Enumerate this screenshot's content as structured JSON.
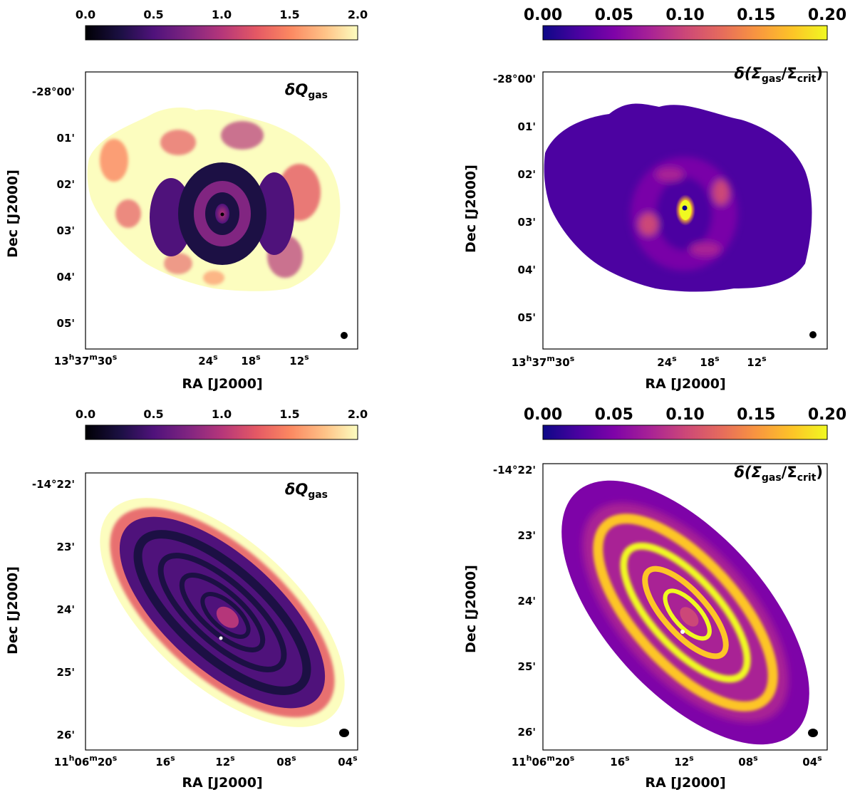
{
  "chart_data": [
    {
      "type": "heatmap",
      "panel": "top-left",
      "title_main": "δQ",
      "title_sub": "gas",
      "colormap": "magma",
      "colorbar": {
        "range": [
          0.0,
          2.0
        ],
        "ticks": [
          "0.0",
          "0.5",
          "1.0",
          "1.5",
          "2.0"
        ],
        "tick_values": [
          0.0,
          0.5,
          1.0,
          1.5,
          2.0
        ],
        "font": "small"
      },
      "xlabel": "RA [J2000]",
      "ylabel": "Dec [J2000]",
      "xticks": [
        {
          "base": "13",
          "sup1": "h",
          "mid": "37",
          "sup2": "m",
          "sec": "30",
          "sup3": "s"
        },
        {
          "sec": "24",
          "sup3": "s"
        },
        {
          "sec": "18",
          "sup3": "s"
        },
        {
          "sec": "12",
          "sup3": "s"
        }
      ],
      "yticks": [
        "-28°00'",
        "01'",
        "02'",
        "03'",
        "04'",
        "05'"
      ],
      "galaxy": "face-on barred spiral with ring",
      "beam": "small circular"
    },
    {
      "type": "heatmap",
      "panel": "top-right",
      "title_main": "δ(Σ",
      "title_sub1": "gas",
      "title_mid": "/Σ",
      "title_sub2": "crit",
      "title_end": ")",
      "colormap": "plasma",
      "colorbar": {
        "range": [
          0.0,
          0.2
        ],
        "ticks": [
          "0.00",
          "0.05",
          "0.10",
          "0.15",
          "0.20"
        ],
        "tick_values": [
          0.0,
          0.05,
          0.1,
          0.15,
          0.2
        ],
        "font": "large"
      },
      "xlabel": "RA [J2000]",
      "ylabel": "Dec [J2000]",
      "xticks": [
        {
          "base": "13",
          "sup1": "h",
          "mid": "37",
          "sup2": "m",
          "sec": "30",
          "sup3": "s"
        },
        {
          "sec": "24",
          "sup3": "s"
        },
        {
          "sec": "18",
          "sup3": "s"
        },
        {
          "sec": "12",
          "sup3": "s"
        }
      ],
      "yticks": [
        "-28°00'",
        "01'",
        "02'",
        "03'",
        "04'",
        "05'"
      ],
      "galaxy": "face-on barred spiral with ring",
      "beam": "small circular"
    },
    {
      "type": "heatmap",
      "panel": "bottom-left",
      "title_main": "δQ",
      "title_sub": "gas",
      "colormap": "magma",
      "colorbar": {
        "range": [
          0.0,
          2.0
        ],
        "ticks": [
          "0.0",
          "0.5",
          "1.0",
          "1.5",
          "2.0"
        ],
        "tick_values": [
          0.0,
          0.5,
          1.0,
          1.5,
          2.0
        ],
        "font": "small"
      },
      "xlabel": "RA [J2000]",
      "ylabel": "Dec [J2000]",
      "xticks": [
        {
          "base": "11",
          "sup1": "h",
          "mid": "06",
          "sup2": "m",
          "sec": "20",
          "sup3": "s"
        },
        {
          "sec": "16",
          "sup3": "s"
        },
        {
          "sec": "12",
          "sup3": "s"
        },
        {
          "sec": "08",
          "sup3": "s"
        },
        {
          "sec": "04",
          "sup3": "s"
        }
      ],
      "yticks": [
        "-14°22'",
        "23'",
        "24'",
        "25'",
        "26'"
      ],
      "galaxy": "inclined spiral with multiple rings",
      "beam": "larger elliptical"
    },
    {
      "type": "heatmap",
      "panel": "bottom-right",
      "title_main": "δ(Σ",
      "title_sub1": "gas",
      "title_mid": "/Σ",
      "title_sub2": "crit",
      "title_end": ")",
      "colormap": "plasma",
      "colorbar": {
        "range": [
          0.0,
          0.2
        ],
        "ticks": [
          "0.00",
          "0.05",
          "0.10",
          "0.15",
          "0.20"
        ],
        "tick_values": [
          0.0,
          0.05,
          0.1,
          0.15,
          0.2
        ],
        "font": "large"
      },
      "xlabel": "RA [J2000]",
      "ylabel": "Dec [J2000]",
      "xticks": [
        {
          "base": "11",
          "sup1": "h",
          "mid": "06",
          "sup2": "m",
          "sec": "20",
          "sup3": "s"
        },
        {
          "sec": "16",
          "sup3": "s"
        },
        {
          "sec": "12",
          "sup3": "s"
        },
        {
          "sec": "08",
          "sup3": "s"
        },
        {
          "sec": "04",
          "sup3": "s"
        }
      ],
      "yticks": [
        "-14°22'",
        "23'",
        "24'",
        "25'",
        "26'"
      ],
      "galaxy": "inclined spiral with multiple rings",
      "beam": "larger elliptical"
    }
  ]
}
